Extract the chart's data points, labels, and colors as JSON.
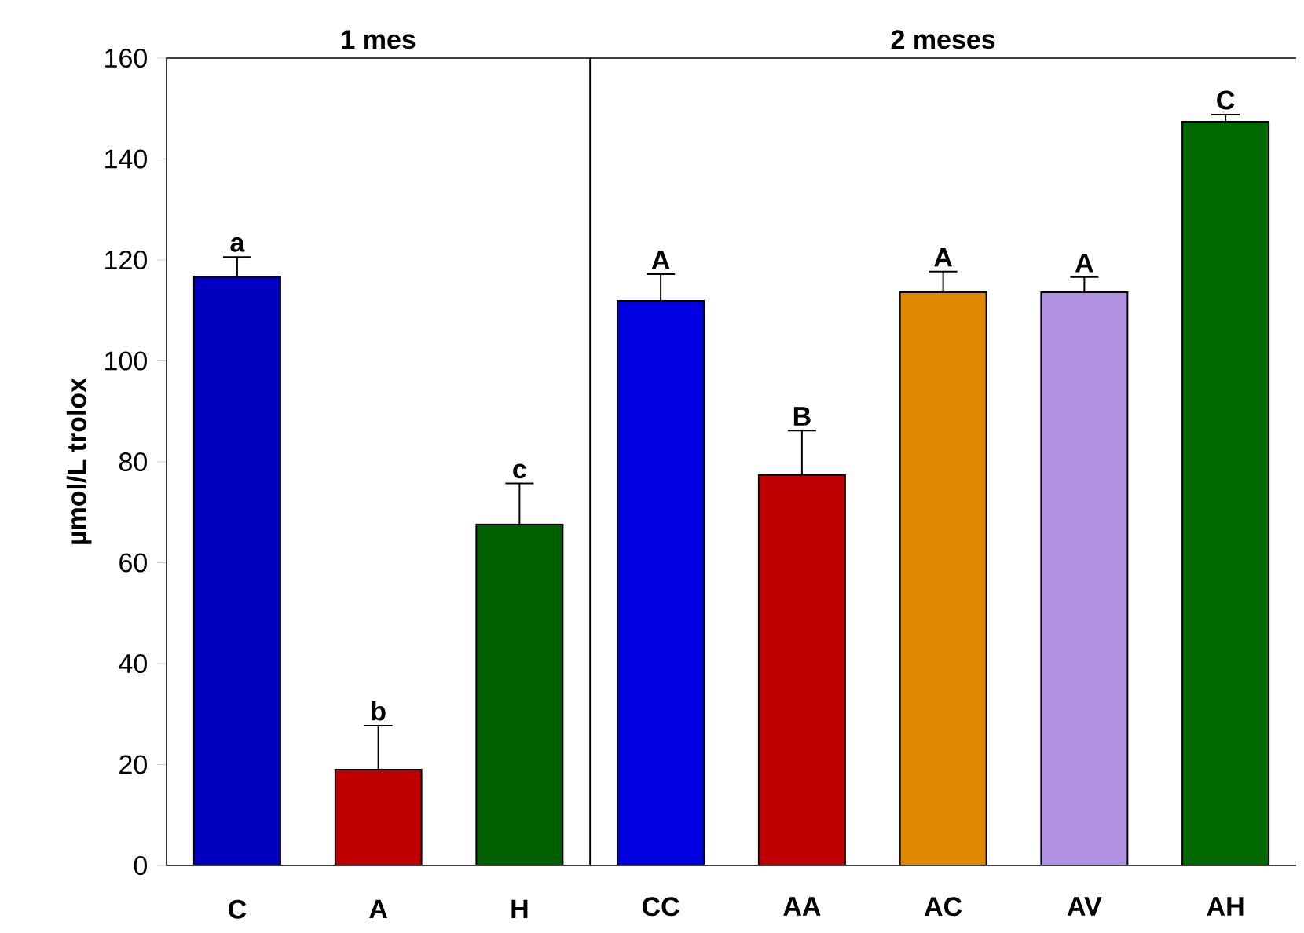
{
  "chart_data": [
    {
      "type": "bar",
      "title": "1 mes",
      "ylabel": "µmol/L trolox",
      "categories": [
        "C",
        "A",
        "H"
      ],
      "values": [
        116.7,
        19.0,
        67.6
      ],
      "errors": [
        3.9,
        8.7,
        8.1
      ],
      "colors": [
        "#0000c0",
        "#c00000",
        "#006000"
      ],
      "value_labels": [
        "a",
        "b",
        "c"
      ],
      "ylim": [
        0,
        160
      ],
      "yticks": [
        0,
        20,
        40,
        60,
        80,
        100,
        120,
        140,
        160
      ]
    },
    {
      "type": "bar",
      "title": "2 meses",
      "categories": [
        "CC",
        "AA",
        "AC",
        "AV",
        "AH"
      ],
      "values": [
        111.9,
        77.4,
        113.6,
        113.6,
        147.4
      ],
      "errors": [
        5.3,
        8.8,
        4.1,
        3.0,
        1.4
      ],
      "colors": [
        "#0000e0",
        "#c00000",
        "#e08800",
        "#b090e0",
        "#006800"
      ],
      "value_labels": [
        "A",
        "B",
        "A",
        "A",
        "C"
      ],
      "ylim": [
        0,
        160
      ],
      "yticks": [
        0,
        20,
        40,
        60,
        80,
        100,
        120,
        140,
        160
      ],
      "tick_labels": "x"
    }
  ]
}
